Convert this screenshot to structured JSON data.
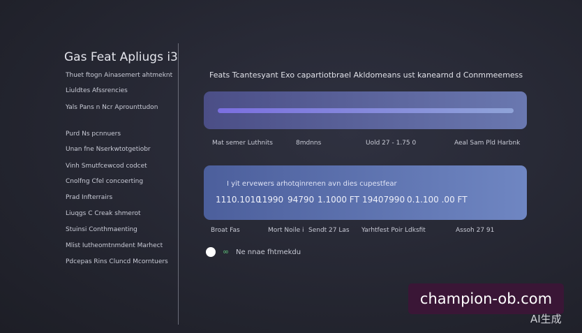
{
  "sidebar": {
    "title": "Gas Feat Apliugs i3",
    "items": [
      "Thuet ftogn Ainasemert ahtmeknt",
      "Liuldtes Afssrencies",
      "Yals Pans n Ncr Aprounttudon",
      "Purd Ns pcnnuers",
      "Unan fne Nserkwtotgetiobr",
      "Vinh Smutfcewcod codcet",
      "Cnolfng Cfel concoerting",
      "Prad Infterrairs",
      "Liuqgs C Creak shmerot",
      "Stuinsi Conthmaenting",
      "Mlist Iutheomtnmdent Marhect",
      "Pdcepas Rins Cluncd Mcorntuers"
    ]
  },
  "main": {
    "heading": "Feats Tcantesyant Exo capartiotbrael Akldomeans ust kanearnd d Conmmeemess",
    "panel1_labels": [
      "Mat semer Luthnits",
      "8mdnns",
      "Uold 27 - 1.75 0",
      "Aeal Sam Pld Harbnk"
    ],
    "panel2_text": "I yit ervewers arhotqinrenen avn dies cupestfear",
    "panel2_values": [
      "1110.1010",
      "11990",
      "94790",
      "1.1000 FT",
      "19407990",
      "0.1.100 .00 FT"
    ],
    "panel2_labels": [
      "Broat Fas",
      "Mort Noile i",
      "Sendt 27 Las",
      "Yarhtfest Poir Ldksfit",
      "Assoh 27 91"
    ],
    "toggle_label": "Ne nnae fhtmekdu"
  },
  "watermark": {
    "site": "champion-ob.com",
    "tag": "AI生成"
  }
}
